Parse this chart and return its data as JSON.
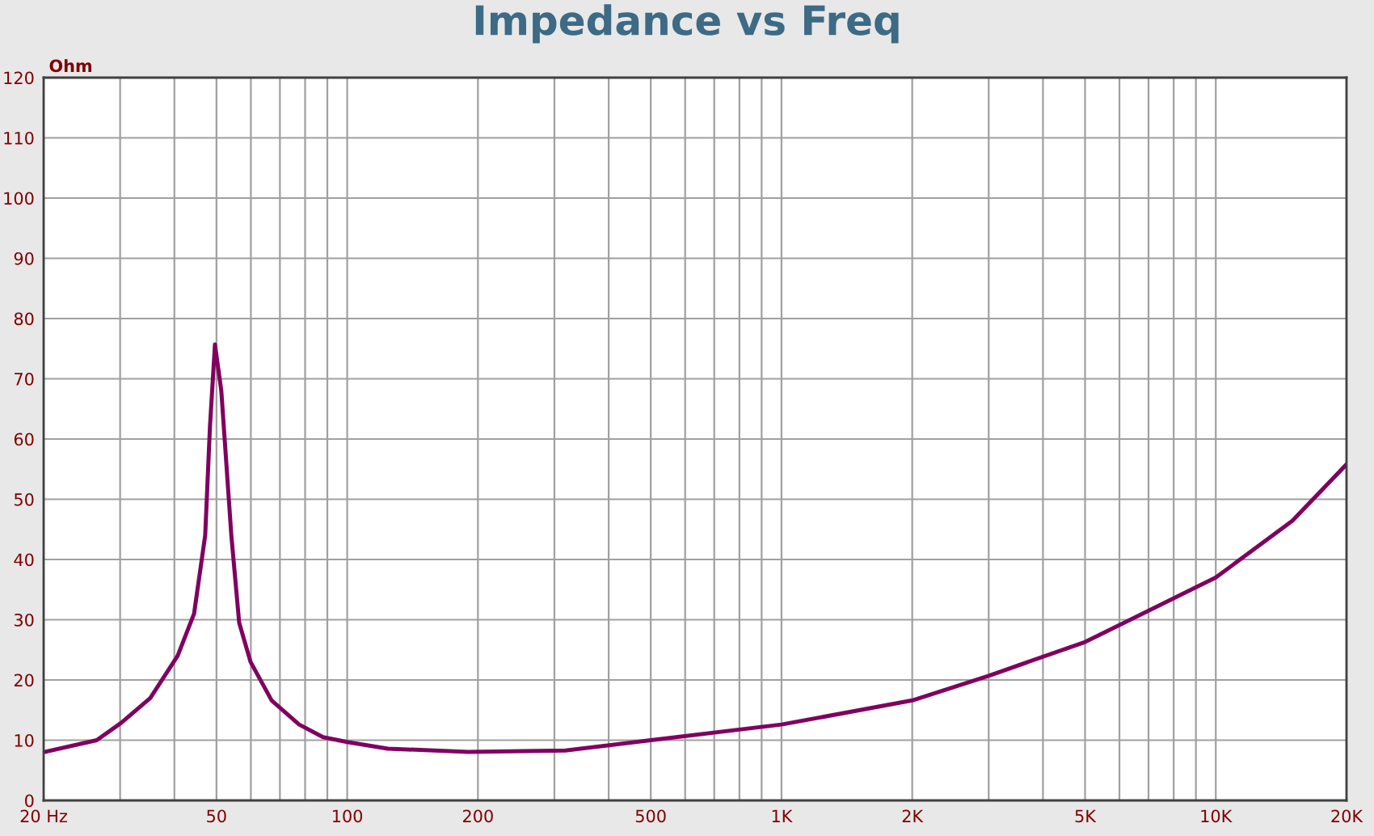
{
  "chart_data": {
    "type": "line",
    "title": "Impedance vs Freq",
    "ylabel": "Ohm",
    "x": [
      20,
      26.5,
      30.2,
      35.2,
      40.7,
      44.4,
      47.1,
      48.3,
      49.6,
      51.3,
      54.1,
      56.4,
      59.9,
      67,
      77.5,
      88,
      100,
      124,
      190,
      318,
      500,
      1000,
      2000,
      3000,
      5000,
      10000,
      15000,
      20000
    ],
    "series": [
      {
        "color": "#800060",
        "values": [
          8,
          10,
          12.9,
          17,
          24,
          31,
          44,
          62,
          75.7,
          68,
          44,
          29.5,
          23,
          16.6,
          12.6,
          10.5,
          9.7,
          8.6,
          8.05,
          8.3,
          10,
          12.6,
          16.6,
          20.7,
          26.3,
          37,
          46.4,
          55.8
        ]
      }
    ],
    "log": "x",
    "grid": true,
    "legend": false,
    "marker": "none",
    "line_style": "solid",
    "xlim": [
      20,
      20000
    ],
    "ylim": [
      0,
      120
    ],
    "xticks": [
      {
        "value": 20,
        "label": "20 Hz"
      },
      {
        "value": 30,
        "label": null
      },
      {
        "value": 40,
        "label": null
      },
      {
        "value": 50,
        "label": "50"
      },
      {
        "value": 60,
        "label": null
      },
      {
        "value": 70,
        "label": null
      },
      {
        "value": 80,
        "label": null
      },
      {
        "value": 90,
        "label": null
      },
      {
        "value": 100,
        "label": "100"
      },
      {
        "value": 200,
        "label": "200"
      },
      {
        "value": 300,
        "label": null
      },
      {
        "value": 400,
        "label": null
      },
      {
        "value": 500,
        "label": "500"
      },
      {
        "value": 600,
        "label": null
      },
      {
        "value": 700,
        "label": null
      },
      {
        "value": 800,
        "label": null
      },
      {
        "value": 900,
        "label": null
      },
      {
        "value": 1000,
        "label": "1K"
      },
      {
        "value": 2000,
        "label": "2K"
      },
      {
        "value": 3000,
        "label": null
      },
      {
        "value": 4000,
        "label": null
      },
      {
        "value": 5000,
        "label": "5K"
      },
      {
        "value": 6000,
        "label": null
      },
      {
        "value": 7000,
        "label": null
      },
      {
        "value": 8000,
        "label": null
      },
      {
        "value": 9000,
        "label": null
      },
      {
        "value": 10000,
        "label": "10K"
      },
      {
        "value": 20000,
        "label": "20K"
      }
    ],
    "yticks": [
      0,
      10,
      20,
      30,
      40,
      50,
      60,
      70,
      80,
      90,
      100,
      110,
      120
    ]
  }
}
